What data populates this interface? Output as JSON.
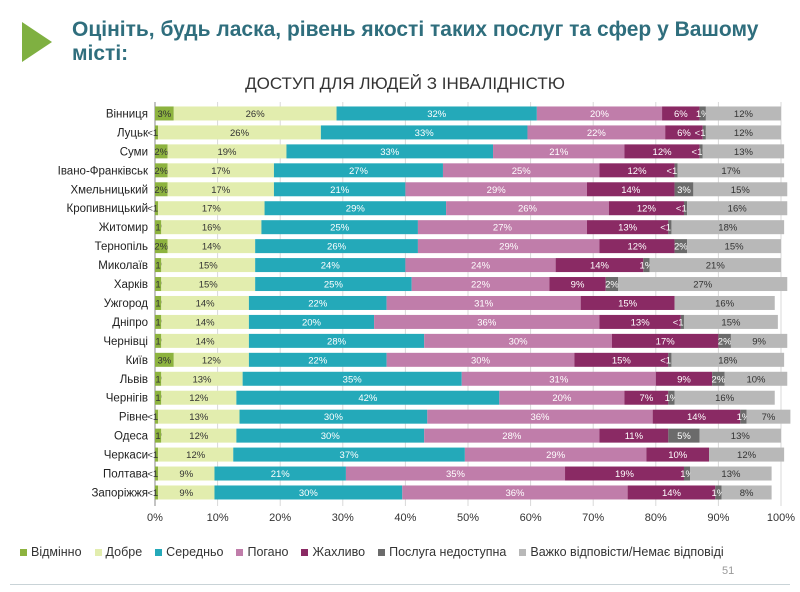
{
  "slide": {
    "title": "Оцініть, будь ласка, рівень якості таких послуг та сфер у Вашому місті:",
    "page_number": "51"
  },
  "chart_data": {
    "type": "bar",
    "orientation": "horizontal",
    "stacked": true,
    "title": "ДОСТУП ДЛЯ ЛЮДЕЙ З ІНВАЛІДНІСТЮ",
    "xlim": [
      0,
      100
    ],
    "x_ticks": [
      "0%",
      "10%",
      "20%",
      "30%",
      "40%",
      "50%",
      "60%",
      "70%",
      "80%",
      "90%",
      "100%"
    ],
    "grid": true,
    "legend_position": "bottom",
    "categories": [
      "Вінниця",
      "Луцьк",
      "Суми",
      "Івано-Франківськ",
      "Хмельницький",
      "Кропивницький",
      "Житомир",
      "Тернопіль",
      "Миколаїв",
      "Харків",
      "Ужгород",
      "Дніпро",
      "Чернівці",
      "Київ",
      "Львів",
      "Чернігів",
      "Рівне",
      "Одеса",
      "Черкаси",
      "Полтава",
      "Запоріжжя"
    ],
    "series": [
      {
        "name": "Відмінно",
        "color": "#8db33f",
        "values": [
          3,
          0.5,
          2,
          2,
          2,
          0.5,
          1,
          2,
          1,
          1,
          1,
          1,
          1,
          3,
          1,
          1,
          0.5,
          1,
          0.5,
          0.5,
          0.5
        ],
        "labels": [
          "3%",
          "<1%",
          "2%",
          "2%",
          "2%",
          "<1%",
          "1%",
          "2%",
          "1%",
          "1%",
          "1%",
          "1%",
          "1%",
          "3%",
          "1%",
          "1%",
          "<1%",
          "1%",
          "<1%",
          "<1%",
          "<1%"
        ]
      },
      {
        "name": "Добре",
        "color": "#e2edae",
        "values": [
          26,
          26,
          19,
          17,
          17,
          17,
          16,
          14,
          15,
          15,
          14,
          14,
          14,
          12,
          13,
          12,
          13,
          12,
          12,
          9,
          9
        ],
        "labels": [
          "26%",
          "26%",
          "19%",
          "17%",
          "17%",
          "17%",
          "16%",
          "14%",
          "15%",
          "15%",
          "14%",
          "14%",
          "14%",
          "12%",
          "13%",
          "12%",
          "13%",
          "12%",
          "12%",
          "9%",
          "9%"
        ]
      },
      {
        "name": "Середньо",
        "color": "#24a9b9",
        "values": [
          32,
          33,
          33,
          27,
          21,
          29,
          25,
          26,
          24,
          25,
          22,
          20,
          28,
          22,
          35,
          42,
          30,
          30,
          37,
          21,
          30
        ],
        "labels": [
          "32%",
          "33%",
          "33%",
          "27%",
          "21%",
          "29%",
          "25%",
          "26%",
          "24%",
          "25%",
          "22%",
          "20%",
          "28%",
          "22%",
          "35%",
          "42%",
          "30%",
          "30%",
          "37%",
          "21%",
          "30%"
        ]
      },
      {
        "name": "Погано",
        "color": "#c07daa",
        "values": [
          20,
          22,
          21,
          25,
          29,
          26,
          27,
          29,
          24,
          22,
          31,
          36,
          30,
          30,
          31,
          20,
          36,
          28,
          29,
          35,
          36
        ],
        "labels": [
          "20%",
          "22%",
          "21%",
          "25%",
          "29%",
          "26%",
          "27%",
          "29%",
          "24%",
          "22%",
          "31%",
          "36%",
          "30%",
          "30%",
          "31%",
          "20%",
          "36%",
          "28%",
          "29%",
          "35%",
          "36%"
        ]
      },
      {
        "name": "Жахливо",
        "color": "#8a2a64",
        "values": [
          6,
          6,
          12,
          12,
          14,
          12,
          13,
          12,
          14,
          9,
          15,
          13,
          17,
          15,
          9,
          7,
          14,
          11,
          10,
          19,
          14
        ],
        "labels": [
          "6%",
          "6%",
          "12%",
          "12%",
          "14%",
          "12%",
          "13%",
          "12%",
          "14%",
          "9%",
          "15%",
          "13%",
          "17%",
          "15%",
          "9%",
          "7%",
          "14%",
          "11%",
          "10%",
          "19%",
          "14%"
        ]
      },
      {
        "name": "Послуга недоступна",
        "color": "#6b6b6b",
        "values": [
          1,
          0.5,
          0.5,
          0.5,
          3,
          0.5,
          0.5,
          2,
          1,
          2,
          0,
          0.5,
          2,
          0.5,
          2,
          1,
          1,
          5,
          0,
          1,
          1
        ],
        "labels": [
          "1%",
          "<1%",
          "<1%",
          "<1%",
          "3%",
          "<1%",
          "<1%",
          "2%",
          "1%",
          "2%",
          "",
          "<1%",
          "2%",
          "<1%",
          "2%",
          "1%",
          "1%",
          "5%",
          "",
          "1%",
          "1%"
        ]
      },
      {
        "name": "Важко відповісти/Немає відповіді",
        "color": "#b8b8b8",
        "values": [
          12,
          12,
          13,
          17,
          15,
          16,
          18,
          15,
          21,
          27,
          16,
          15,
          9,
          18,
          10,
          16,
          7,
          13,
          12,
          13,
          8
        ],
        "labels": [
          "12%",
          "12%",
          "13%",
          "17%",
          "15%",
          "16%",
          "18%",
          "15%",
          "21%",
          "27%",
          "16%",
          "15%",
          "9%",
          "18%",
          "10%",
          "16%",
          "7%",
          "13%",
          "12%",
          "13%",
          "8%"
        ]
      }
    ]
  }
}
